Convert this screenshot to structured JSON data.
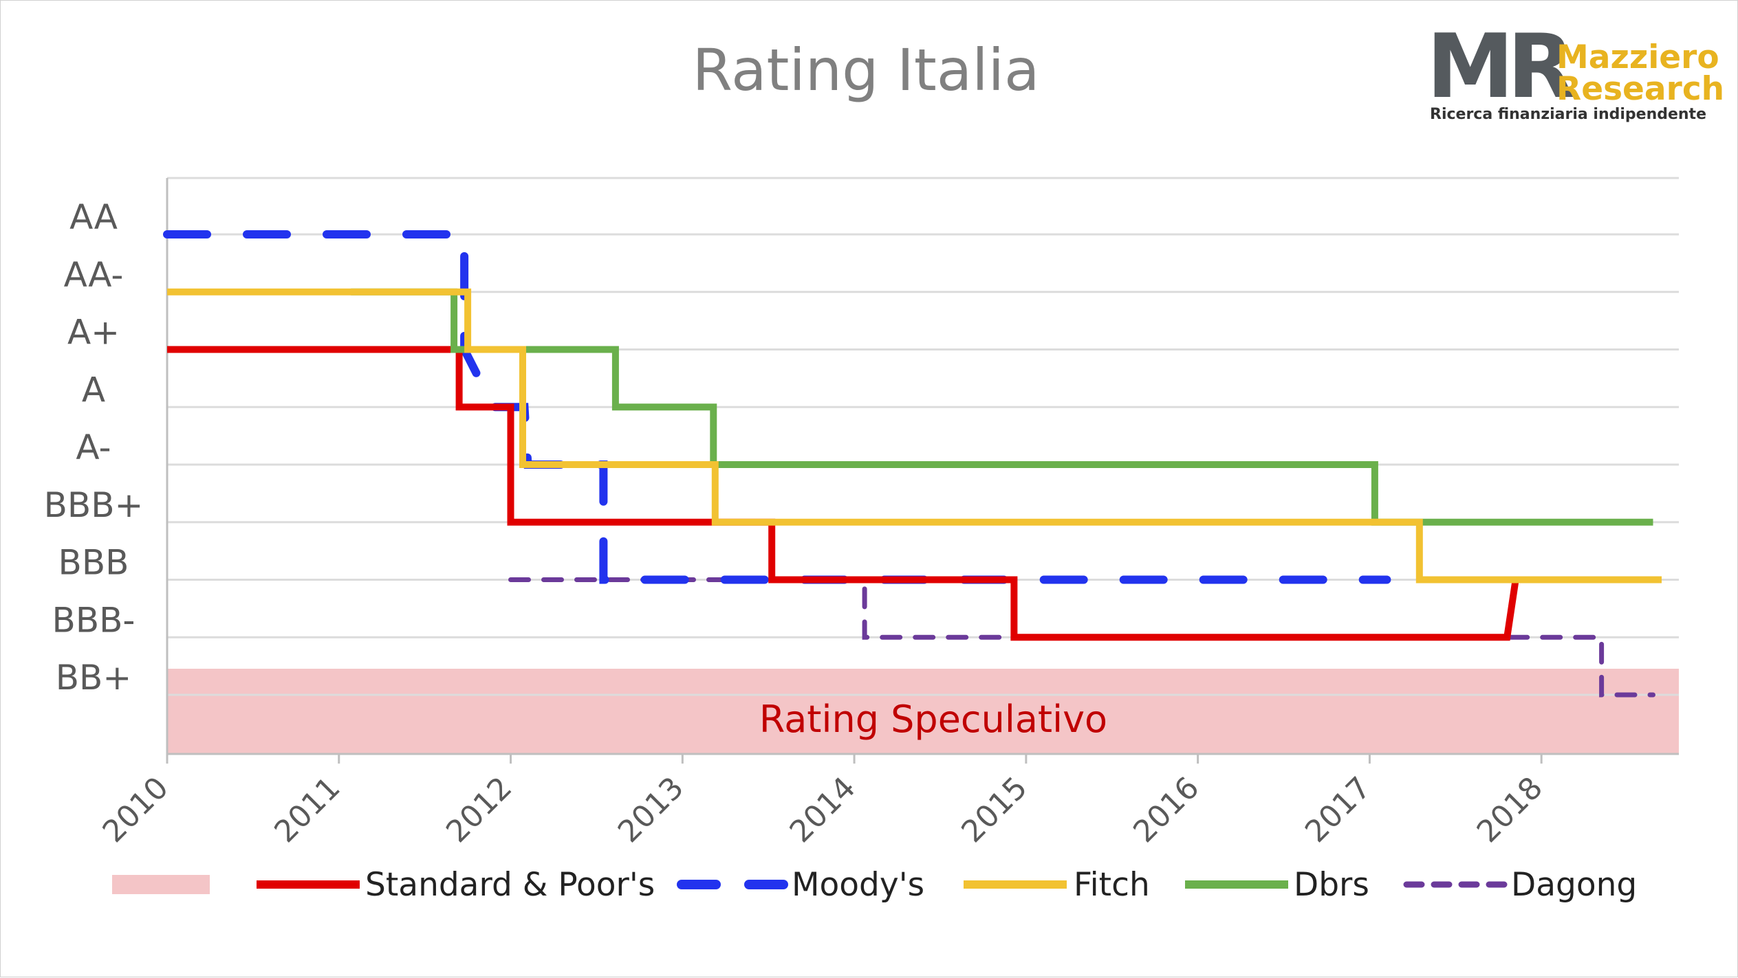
{
  "logo": {
    "mark": "MR",
    "name_line1": "Mazziero",
    "name_line2": "Research",
    "tagline": "Ricerca finanziaria indipendente"
  },
  "chart_data": {
    "type": "line",
    "title": "Rating Italia",
    "xlabel": "",
    "ylabel": "",
    "x_ticks": [
      "2010",
      "2011",
      "2012",
      "2013",
      "2014",
      "2015",
      "2016",
      "2017",
      "2018"
    ],
    "xlim": [
      2010,
      2018.8
    ],
    "y_ticks": [
      "AA",
      "AA-",
      "A+",
      "A",
      "A-",
      "BBB+",
      "BBB",
      "BBB-",
      "BB+"
    ],
    "grid": true,
    "speculative_band": {
      "label": "Rating Speculativo",
      "from_rating": "BB+",
      "color": "#f4c5c7"
    },
    "legend_position": "bottom",
    "series": [
      {
        "name": "Standard & Poor's",
        "color": "#e00000",
        "style": "solid",
        "points": [
          [
            2010.0,
            "A+"
          ],
          [
            2011.7,
            "A+"
          ],
          [
            2011.7,
            "A"
          ],
          [
            2012.0,
            "A"
          ],
          [
            2012.0,
            "BBB+"
          ],
          [
            2013.52,
            "BBB+"
          ],
          [
            2013.52,
            "BBB"
          ],
          [
            2014.93,
            "BBB"
          ],
          [
            2014.93,
            "BBB-"
          ],
          [
            2017.8,
            "BBB-"
          ],
          [
            2017.85,
            "BBB"
          ],
          [
            2018.0,
            "BBB"
          ]
        ]
      },
      {
        "name": "Moody's",
        "color": "#2233ee",
        "style": "dashed",
        "points": [
          [
            2010.0,
            "AA"
          ],
          [
            2011.63,
            "AA"
          ],
          [
            2011.73,
            "AA"
          ],
          [
            2011.73,
            "A+"
          ],
          [
            2011.9,
            "A"
          ],
          [
            2012.08,
            "A"
          ],
          [
            2012.1,
            "A-"
          ],
          [
            2012.54,
            "A-"
          ],
          [
            2012.54,
            "BBB"
          ],
          [
            2017.1,
            "BBB"
          ]
        ]
      },
      {
        "name": "Fitch",
        "color": "#f2c232",
        "style": "solid",
        "points": [
          [
            2010.0,
            "AA-"
          ],
          [
            2011.75,
            "AA-"
          ],
          [
            2011.75,
            "A+"
          ],
          [
            2012.07,
            "A+"
          ],
          [
            2012.07,
            "A-"
          ],
          [
            2013.19,
            "A-"
          ],
          [
            2013.19,
            "BBB+"
          ],
          [
            2017.29,
            "BBB+"
          ],
          [
            2017.29,
            "BBB"
          ],
          [
            2018.7,
            "BBB"
          ]
        ]
      },
      {
        "name": "Dbrs",
        "color": "#6ab04c",
        "style": "solid",
        "points": [
          [
            2011.07,
            "AA-"
          ],
          [
            2011.67,
            "AA-"
          ],
          [
            2011.67,
            "A+"
          ],
          [
            2012.61,
            "A+"
          ],
          [
            2012.61,
            "A"
          ],
          [
            2013.18,
            "A"
          ],
          [
            2013.18,
            "A-"
          ],
          [
            2017.03,
            "A-"
          ],
          [
            2017.03,
            "BBB+"
          ],
          [
            2018.65,
            "BBB+"
          ]
        ]
      },
      {
        "name": "Dagong",
        "color": "#6b3a9a",
        "style": "dashed-thin",
        "points": [
          [
            2012.0,
            "BBB"
          ],
          [
            2014.06,
            "BBB"
          ],
          [
            2014.06,
            "BBB-"
          ],
          [
            2018.35,
            "BBB-"
          ],
          [
            2018.35,
            "BB+"
          ],
          [
            2018.65,
            "BB+"
          ]
        ]
      }
    ]
  }
}
